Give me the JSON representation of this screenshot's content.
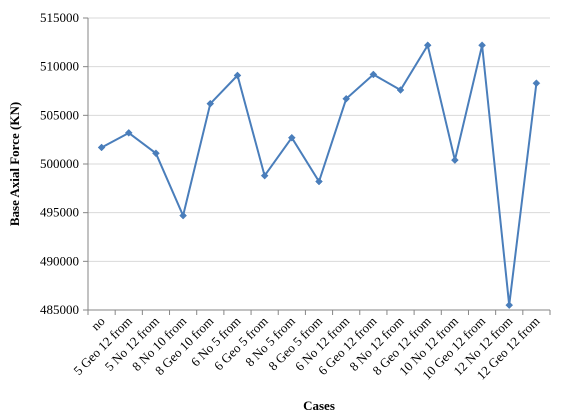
{
  "chart_data": {
    "type": "line",
    "title": "",
    "xlabel": "Cases",
    "ylabel": "Base Axial Force (KN)",
    "ylim": [
      485000,
      515000
    ],
    "y_ticks": [
      485000,
      490000,
      495000,
      500000,
      505000,
      510000,
      515000
    ],
    "y_tick_labels": [
      "485000",
      "490000",
      "495000",
      "500000",
      "505000",
      "510000",
      "515000"
    ],
    "grid": "horizontal",
    "legend": "none",
    "categories": [
      "no",
      "5 Geo 12 from",
      "5 No 12 from",
      "8 No 10 from",
      "8 Geo 10 from",
      "6 No 5 from",
      "6 Geo 5 from",
      "8 No 5 from",
      "8 Geo 5 from",
      "6 No 12 from",
      "6 Geo 12 from",
      "8 No 12 from",
      "8 Geo 12 from",
      "10 No 12 from",
      "10 Geo 12 from",
      "12 No 12 from",
      "12 Geo 12 from"
    ],
    "series": [
      {
        "values": [
          501700,
          503200,
          501100,
          494700,
          506200,
          509100,
          498800,
          502700,
          498200,
          506700,
          509200,
          507600,
          512200,
          500400,
          512200,
          485500,
          508300
        ]
      }
    ],
    "colors": {
      "line": "#4a7ebb",
      "marker": "#4a7ebb",
      "grid": "#d9d9d9",
      "axis": "#868686"
    }
  }
}
